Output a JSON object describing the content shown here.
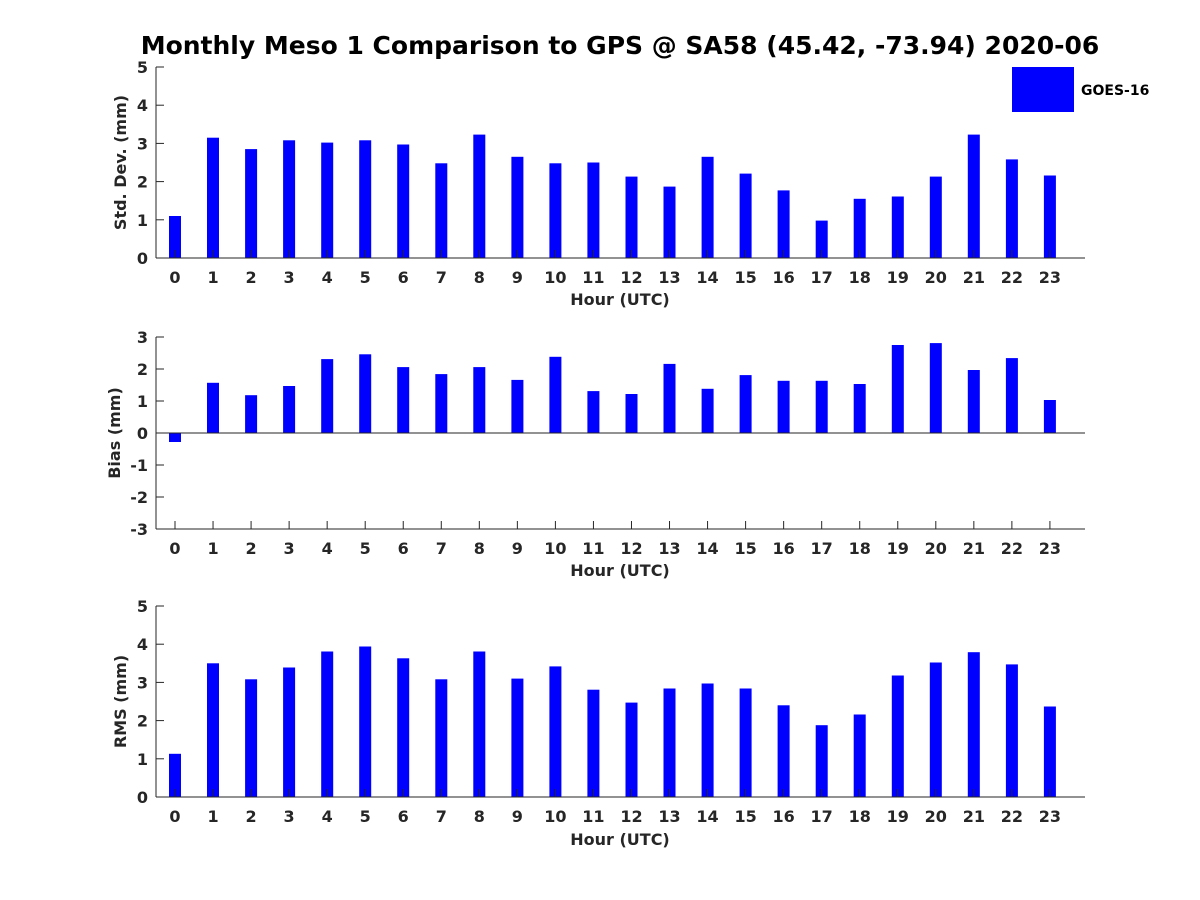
{
  "title": "Monthly Meso 1 Comparison to GPS @ SA58 (45.42, -73.94) 2020-06",
  "colors": {
    "bar": "#0000ff",
    "axis": "#262626",
    "background": "#ffffff"
  },
  "legend": {
    "label": "GOES-16",
    "placement": "top-right"
  },
  "chart_data": [
    {
      "type": "bar",
      "categories": [
        "0",
        "1",
        "2",
        "3",
        "4",
        "5",
        "6",
        "7",
        "8",
        "9",
        "10",
        "11",
        "12",
        "13",
        "14",
        "15",
        "16",
        "17",
        "18",
        "19",
        "20",
        "21",
        "22",
        "23"
      ],
      "series": [
        {
          "name": "GOES-16",
          "values": [
            1.1,
            3.15,
            2.85,
            3.08,
            3.02,
            3.08,
            2.97,
            2.48,
            3.23,
            2.65,
            2.48,
            2.5,
            2.13,
            1.87,
            2.65,
            2.21,
            1.77,
            0.98,
            1.55,
            1.61,
            2.13,
            3.23,
            2.58,
            2.16
          ]
        }
      ],
      "xlabel": "Hour (UTC)",
      "ylabel": "Std. Dev. (mm)",
      "ylim": [
        0,
        5
      ],
      "yticks": [
        "0",
        "1",
        "2",
        "3",
        "4",
        "5"
      ],
      "grid": false
    },
    {
      "type": "bar",
      "categories": [
        "0",
        "1",
        "2",
        "3",
        "4",
        "5",
        "6",
        "7",
        "8",
        "9",
        "10",
        "11",
        "12",
        "13",
        "14",
        "15",
        "16",
        "17",
        "18",
        "19",
        "20",
        "21",
        "22",
        "23"
      ],
      "series": [
        {
          "name": "GOES-16",
          "values": [
            -0.28,
            1.57,
            1.18,
            1.47,
            2.31,
            2.46,
            2.06,
            1.84,
            2.06,
            1.66,
            2.38,
            1.31,
            1.22,
            2.16,
            1.38,
            1.81,
            1.63,
            1.63,
            1.53,
            2.75,
            2.81,
            1.97,
            2.34,
            1.03
          ]
        }
      ],
      "xlabel": "Hour (UTC)",
      "ylabel": "Bias (mm)",
      "ylim": [
        -3,
        3
      ],
      "yticks": [
        "-3",
        "-2",
        "-1",
        "0",
        "1",
        "2",
        "3"
      ],
      "grid": false
    },
    {
      "type": "bar",
      "categories": [
        "0",
        "1",
        "2",
        "3",
        "4",
        "5",
        "6",
        "7",
        "8",
        "9",
        "10",
        "11",
        "12",
        "13",
        "14",
        "15",
        "16",
        "17",
        "18",
        "19",
        "20",
        "21",
        "22",
        "23"
      ],
      "series": [
        {
          "name": "GOES-16",
          "values": [
            1.13,
            3.5,
            3.08,
            3.39,
            3.81,
            3.94,
            3.63,
            3.08,
            3.81,
            3.1,
            3.42,
            2.81,
            2.47,
            2.84,
            2.97,
            2.84,
            2.4,
            1.88,
            2.16,
            3.18,
            3.52,
            3.79,
            3.47,
            2.37
          ]
        }
      ],
      "xlabel": "Hour (UTC)",
      "ylabel": "RMS (mm)",
      "ylim": [
        0,
        5
      ],
      "yticks": [
        "0",
        "1",
        "2",
        "3",
        "4",
        "5"
      ],
      "grid": false
    }
  ]
}
